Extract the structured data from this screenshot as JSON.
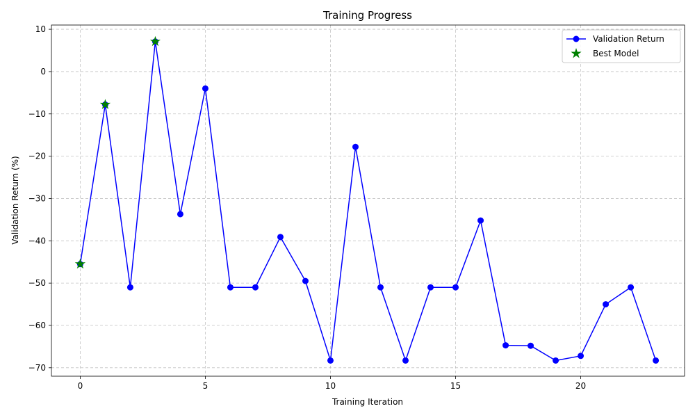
{
  "chart_data": {
    "type": "line",
    "title": "Training Progress",
    "xlabel": "Training Iteration",
    "ylabel": "Validation Return (%)",
    "xlim": [
      -1.15,
      24.15
    ],
    "ylim": [
      -72,
      11
    ],
    "xticks": [
      0,
      5,
      10,
      15,
      20
    ],
    "yticks": [
      -70,
      -60,
      -50,
      -40,
      -30,
      -20,
      -10,
      0,
      10
    ],
    "grid": true,
    "legend_position": "top-right",
    "series": [
      {
        "name": "Validation Return",
        "color": "#0000ff",
        "marker": "circle",
        "x": [
          0,
          1,
          2,
          3,
          4,
          5,
          6,
          7,
          8,
          9,
          10,
          11,
          12,
          13,
          14,
          15,
          16,
          17,
          18,
          19,
          20,
          21,
          22,
          23
        ],
        "y": [
          -45.5,
          -7.8,
          -51.0,
          7.1,
          -33.7,
          -4.0,
          -51.0,
          -51.0,
          -39.1,
          -49.5,
          -68.3,
          -17.8,
          -51.0,
          -68.3,
          -51.0,
          -51.0,
          -35.2,
          -64.7,
          -64.8,
          -68.3,
          -67.2,
          -55.0,
          -51.0,
          -68.3
        ]
      },
      {
        "name": "Best Model",
        "color": "#008000",
        "marker": "star",
        "x": [
          0,
          1,
          3
        ],
        "y": [
          -45.5,
          -7.8,
          7.1
        ]
      }
    ]
  }
}
